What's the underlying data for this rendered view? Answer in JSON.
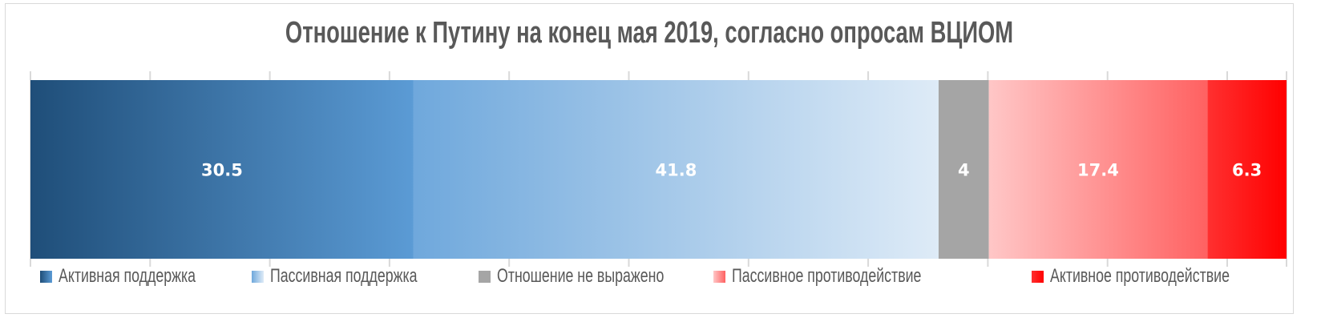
{
  "chart_data": {
    "type": "bar",
    "orientation": "horizontal",
    "stacked": true,
    "title": "Отношение к Путину на конец мая 2019, согласно опросам ВЦИОМ",
    "xlim": [
      0,
      100
    ],
    "grid": true,
    "legend_position": "bottom",
    "data_labels": true,
    "series": [
      {
        "name": "Активная поддержка",
        "value": 30.5,
        "label": "30.5",
        "colors": [
          "#1f4e79",
          "#5b9bd5"
        ]
      },
      {
        "name": "Пассивная поддержка",
        "value": 41.8,
        "label": "41.8",
        "colors": [
          "#6fa8dc",
          "#deebf7"
        ]
      },
      {
        "name": "Отношение не выражено",
        "value": 4,
        "label": "4",
        "colors": [
          "#a5a5a5",
          "#a5a5a5"
        ]
      },
      {
        "name": "Пассивное противодействие",
        "value": 17.4,
        "label": "17.4",
        "colors": [
          "#ffc7c7",
          "#ff6161"
        ]
      },
      {
        "name": "Активное противодействие",
        "value": 6.3,
        "label": "6.3",
        "colors": [
          "#ff3030",
          "#ff0000"
        ]
      }
    ]
  }
}
